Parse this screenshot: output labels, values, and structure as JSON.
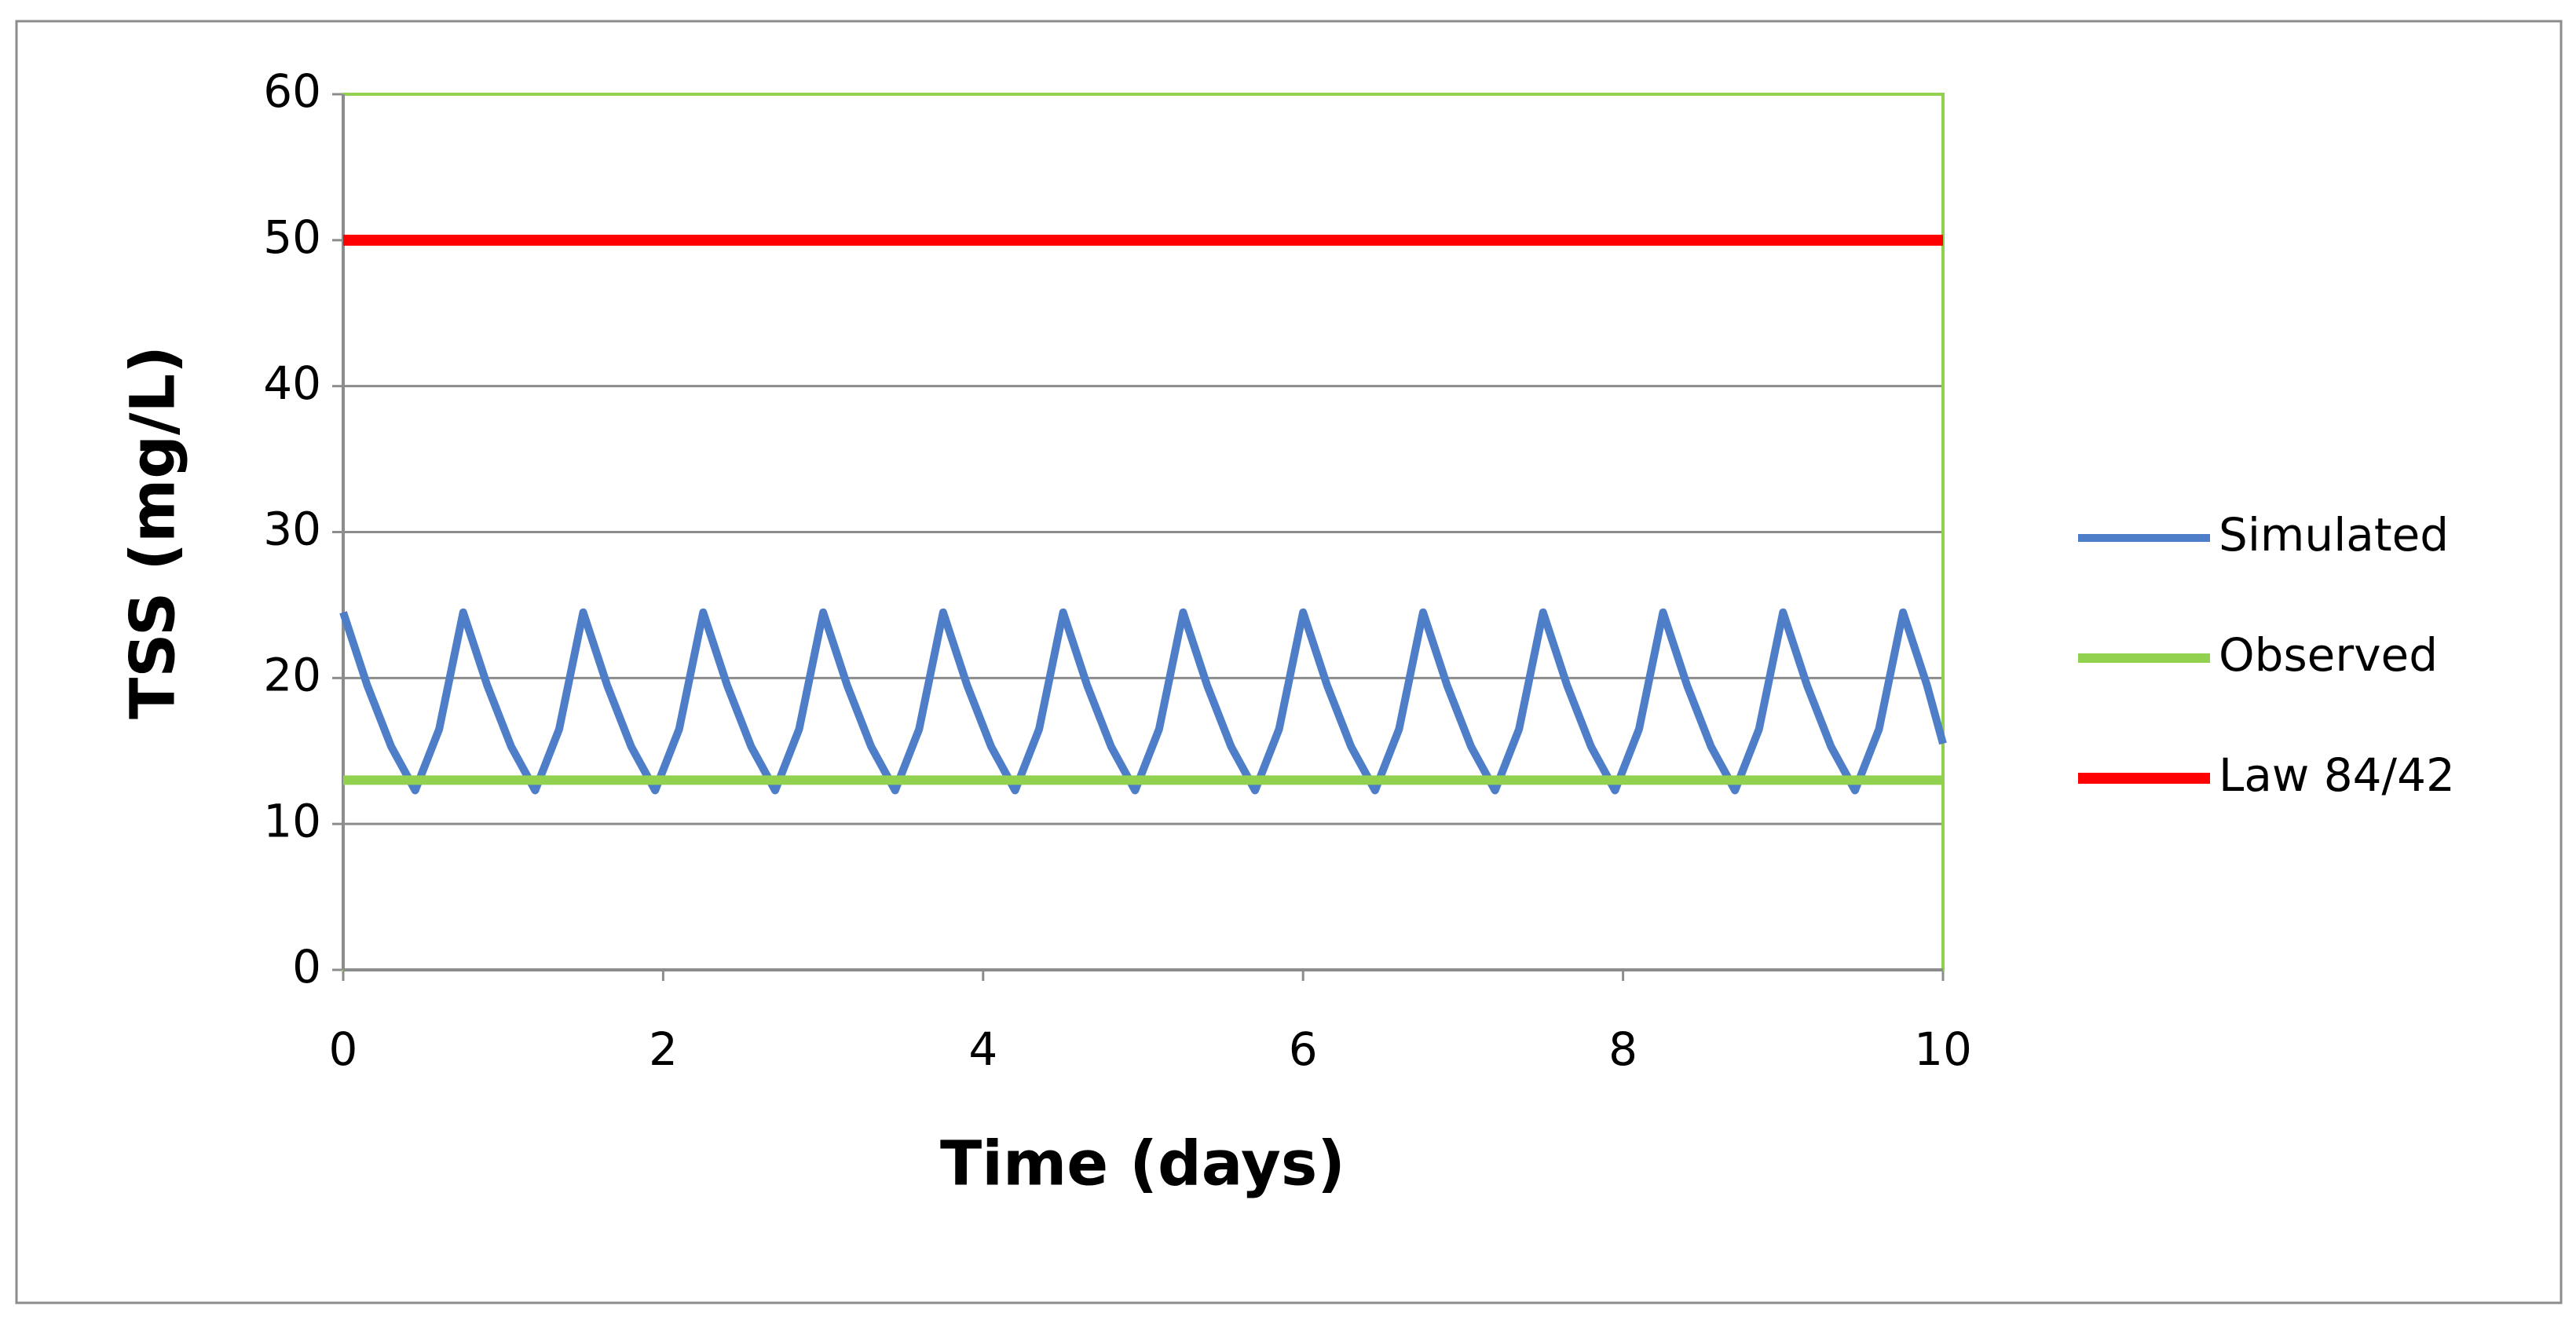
{
  "chart_data": {
    "type": "line",
    "x_label": "Time (days)",
    "y_label": "TSS (mg/L)",
    "xlim": [
      0,
      10
    ],
    "xticks": [
      0,
      2,
      4,
      6,
      8,
      10
    ],
    "ylim": [
      0,
      60
    ],
    "yticks": [
      0,
      10,
      20,
      30,
      40,
      50,
      60
    ],
    "grid": true,
    "legend": "right",
    "series": [
      {
        "name": "Simulated",
        "color": "#4f7ec8",
        "x": [
          0,
          0.15,
          0.3,
          0.45,
          0.6,
          0.75,
          0.9,
          1.05,
          1.2,
          1.35,
          1.5,
          1.65,
          1.8,
          1.95,
          2.1,
          2.25,
          2.4,
          2.55,
          2.7,
          2.85,
          3,
          3.15,
          3.3,
          3.45,
          3.6,
          3.75,
          3.9,
          4.05,
          4.2,
          4.35,
          4.5,
          4.65,
          4.8,
          4.95,
          5.1,
          5.25,
          5.4,
          5.55,
          5.7,
          5.85,
          6,
          6.15,
          6.3,
          6.45,
          6.6,
          6.75,
          6.9,
          7.05,
          7.2,
          7.35,
          7.5,
          7.65,
          7.8,
          7.95,
          8.1,
          8.25,
          8.4,
          8.55,
          8.7,
          8.85,
          9,
          9.15,
          9.3,
          9.45,
          9.6,
          9.75,
          9.9,
          10
        ],
        "values": [
          24.5,
          19.5,
          15.3,
          12.3,
          16.5,
          24.5,
          19.5,
          15.3,
          12.3,
          16.5,
          24.5,
          19.5,
          15.3,
          12.3,
          16.5,
          24.5,
          19.5,
          15.3,
          12.3,
          16.5,
          24.5,
          19.5,
          15.3,
          12.3,
          16.5,
          24.5,
          19.5,
          15.3,
          12.3,
          16.5,
          24.5,
          19.5,
          15.3,
          12.3,
          16.5,
          24.5,
          19.5,
          15.3,
          12.3,
          16.5,
          24.5,
          19.5,
          15.3,
          12.3,
          16.5,
          24.5,
          19.5,
          15.3,
          12.3,
          16.5,
          24.5,
          19.5,
          15.3,
          12.3,
          16.5,
          24.5,
          19.5,
          15.3,
          12.3,
          16.5,
          24.5,
          19.5,
          15.3,
          12.3,
          16.5,
          24.5,
          19.5,
          15.5
        ]
      },
      {
        "name": "Observed",
        "color": "#92d050",
        "x": [
          0,
          10
        ],
        "values": [
          13,
          13
        ]
      },
      {
        "name": "Law 84/42",
        "color": "#ff0000",
        "x": [
          0,
          10
        ],
        "values": [
          50,
          50
        ]
      }
    ]
  }
}
